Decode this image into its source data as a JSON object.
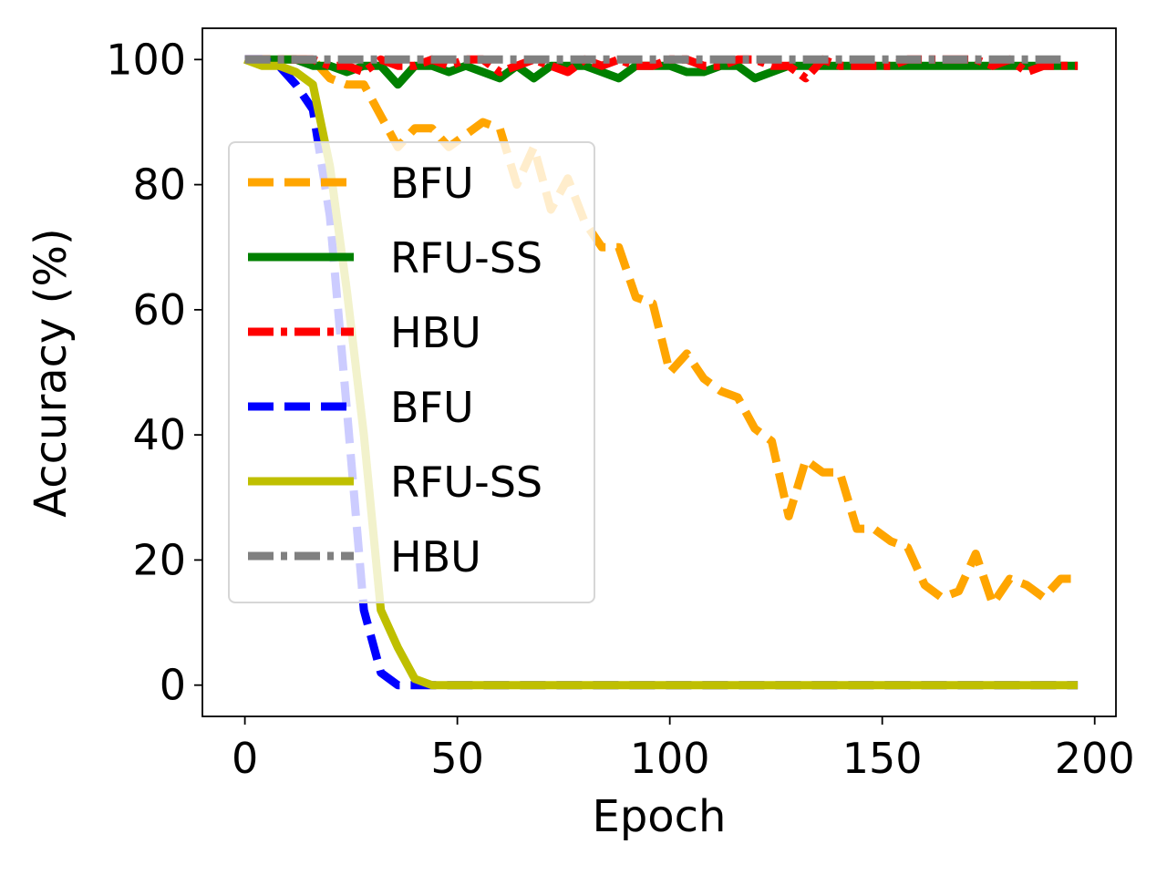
{
  "chart_data": {
    "type": "line",
    "xlabel": "Epoch",
    "ylabel": "Accuracy (%)",
    "xlim": [
      -10,
      205
    ],
    "ylim": [
      -5,
      105
    ],
    "xticks": [
      0,
      50,
      100,
      150,
      200
    ],
    "yticks": [
      0,
      20,
      40,
      60,
      80,
      100
    ],
    "grid": false,
    "legend_position": "center-left",
    "series": [
      {
        "name": "BFU",
        "color": "#FFA500",
        "dash": "dashed",
        "x": [
          0,
          4,
          8,
          12,
          16,
          20,
          24,
          28,
          32,
          36,
          40,
          44,
          48,
          52,
          56,
          60,
          64,
          68,
          72,
          76,
          80,
          84,
          88,
          92,
          96,
          100,
          104,
          108,
          112,
          116,
          120,
          124,
          128,
          132,
          136,
          140,
          144,
          148,
          152,
          156,
          160,
          164,
          168,
          172,
          176,
          180,
          184,
          188,
          192,
          196
        ],
        "y": [
          100,
          100,
          100,
          100,
          100,
          97,
          96,
          96,
          91,
          86,
          89,
          89,
          86,
          88,
          90,
          89,
          80,
          86,
          76,
          81,
          74,
          70,
          70,
          62,
          61,
          50,
          53,
          49,
          47,
          46,
          41,
          39,
          27,
          36,
          34,
          34,
          25,
          25,
          23,
          22,
          16,
          14,
          15,
          21,
          13,
          17,
          16,
          14,
          17,
          17
        ]
      },
      {
        "name": "RFU-SS",
        "color": "#008000",
        "dash": "solid",
        "x": [
          0,
          4,
          8,
          12,
          16,
          20,
          24,
          28,
          32,
          36,
          40,
          44,
          48,
          52,
          56,
          60,
          64,
          68,
          72,
          76,
          80,
          84,
          88,
          92,
          96,
          100,
          104,
          108,
          112,
          116,
          120,
          124,
          128,
          132,
          136,
          140,
          144,
          148,
          152,
          156,
          160,
          164,
          168,
          172,
          176,
          180,
          184,
          188,
          192,
          196
        ],
        "y": [
          100,
          100,
          100,
          100,
          99,
          99,
          98,
          99,
          99,
          96,
          99,
          99,
          98,
          99,
          98,
          97,
          99,
          97,
          99,
          99,
          99,
          98,
          97,
          99,
          99,
          99,
          98,
          98,
          99,
          99,
          97,
          98,
          99,
          99,
          99,
          99,
          99,
          99,
          99,
          99,
          99,
          99,
          99,
          99,
          99,
          99,
          99,
          99,
          99,
          99
        ]
      },
      {
        "name": "HBU",
        "color": "#FF0000",
        "dash": "dashdot",
        "x": [
          0,
          4,
          8,
          12,
          16,
          20,
          24,
          28,
          32,
          36,
          40,
          44,
          48,
          52,
          56,
          60,
          64,
          68,
          72,
          76,
          80,
          84,
          88,
          92,
          96,
          100,
          104,
          108,
          112,
          116,
          120,
          124,
          128,
          132,
          136,
          140,
          144,
          148,
          152,
          156,
          160,
          164,
          168,
          172,
          176,
          180,
          184,
          188,
          192,
          196
        ],
        "y": [
          100,
          100,
          100,
          100,
          100,
          99,
          99,
          98,
          100,
          99,
          99,
          100,
          99,
          100,
          100,
          98,
          99,
          100,
          99,
          98,
          100,
          99,
          100,
          99,
          99,
          100,
          100,
          99,
          99,
          100,
          100,
          99,
          99,
          97,
          100,
          99,
          99,
          99,
          99,
          100,
          100,
          100,
          100,
          100,
          99,
          100,
          98,
          99,
          99,
          99
        ]
      },
      {
        "name": "BFU",
        "color": "#0000FF",
        "dash": "dashed",
        "x": [
          0,
          4,
          8,
          12,
          16,
          20,
          24,
          28,
          32,
          36,
          40,
          44,
          48,
          60,
          80,
          100,
          120,
          140,
          160,
          180,
          196
        ],
        "y": [
          100,
          100,
          99,
          96,
          92,
          75,
          44,
          12,
          2,
          0,
          0,
          0,
          0,
          0,
          0,
          0,
          0,
          0,
          0,
          0,
          0
        ]
      },
      {
        "name": "RFU-SS",
        "color": "#BFBF00",
        "dash": "solid",
        "x": [
          0,
          4,
          8,
          12,
          16,
          20,
          24,
          28,
          32,
          36,
          40,
          44,
          48,
          60,
          80,
          100,
          120,
          140,
          160,
          180,
          196
        ],
        "y": [
          100,
          99,
          99,
          98,
          96,
          83,
          63,
          40,
          12,
          6,
          1,
          0,
          0,
          0,
          0,
          0,
          0,
          0,
          0,
          0,
          0
        ]
      },
      {
        "name": "HBU",
        "color": "#808080",
        "dash": "dashdot",
        "x": [
          0,
          4,
          8,
          12,
          16,
          20,
          24,
          28,
          32,
          36,
          40,
          44,
          48,
          52,
          56,
          60,
          64,
          68,
          72,
          76,
          80,
          84,
          88,
          92,
          96,
          100,
          104,
          108,
          112,
          116,
          120,
          124,
          128,
          132,
          136,
          140,
          144,
          148,
          152,
          156,
          160,
          164,
          168,
          172,
          176,
          180,
          184,
          188,
          192
        ],
        "y": [
          100,
          100,
          100,
          100,
          100,
          100,
          100,
          100,
          100,
          100,
          100,
          100,
          100,
          100,
          100,
          100,
          100,
          100,
          100,
          100,
          100,
          100,
          100,
          100,
          100,
          100,
          100,
          100,
          100,
          100,
          100,
          100,
          100,
          100,
          100,
          100,
          100,
          100,
          100,
          100,
          100,
          100,
          100,
          100,
          100,
          100,
          100,
          100,
          100
        ]
      }
    ]
  }
}
